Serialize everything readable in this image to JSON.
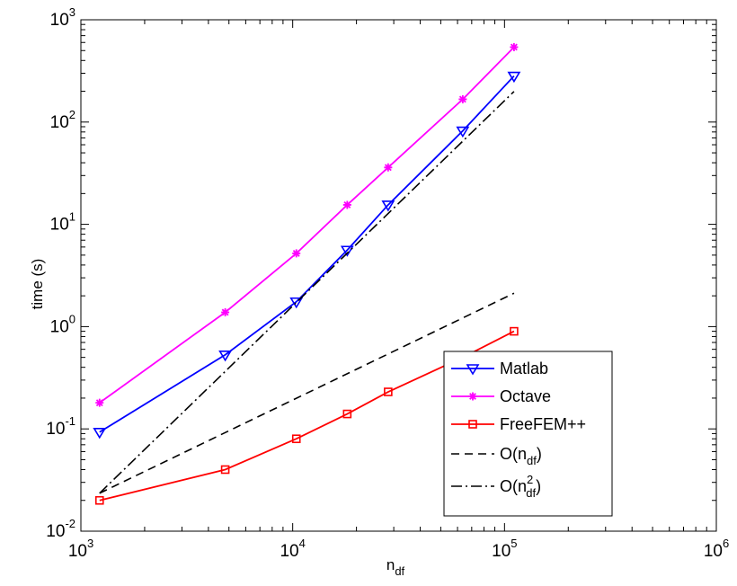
{
  "chart_data": {
    "type": "line",
    "x_scale": "log",
    "y_scale": "log",
    "xlim": [
      1000,
      1000000
    ],
    "ylim": [
      0.01,
      1000
    ],
    "grid": false,
    "legend_position": "lower-right",
    "xlabel": {
      "base": "n",
      "sub": "df"
    },
    "ylabel": "time (s)",
    "x_ticks": [
      {
        "value": 1000,
        "base": "10",
        "exp": "3"
      },
      {
        "value": 10000,
        "base": "10",
        "exp": "4"
      },
      {
        "value": 100000,
        "base": "10",
        "exp": "5"
      },
      {
        "value": 1000000,
        "base": "10",
        "exp": "6"
      }
    ],
    "y_ticks": [
      {
        "value": 0.01,
        "base": "10",
        "exp": "-2"
      },
      {
        "value": 0.1,
        "base": "10",
        "exp": "-1"
      },
      {
        "value": 1,
        "base": "10",
        "exp": "0"
      },
      {
        "value": 10,
        "base": "10",
        "exp": "1"
      },
      {
        "value": 100,
        "base": "10",
        "exp": "2"
      },
      {
        "value": 1000,
        "base": "10",
        "exp": "3"
      }
    ],
    "series": [
      {
        "name": "Matlab",
        "color": "#0000ff",
        "marker": "triangle-down",
        "dash": "",
        "x": [
          1225,
          4802,
          10404,
          18090,
          28224,
          63504,
          110889
        ],
        "y": [
          0.093,
          0.53,
          1.75,
          5.6,
          15.5,
          82,
          282
        ]
      },
      {
        "name": "Octave",
        "color": "#ff00ff",
        "marker": "star",
        "dash": "",
        "x": [
          1225,
          4802,
          10404,
          18090,
          28224,
          63504,
          110889
        ],
        "y": [
          0.18,
          1.38,
          5.2,
          15.5,
          36,
          167,
          540
        ]
      },
      {
        "name": "FreeFEM++",
        "color": "#ff0000",
        "marker": "square",
        "dash": "",
        "x": [
          1225,
          4802,
          10404,
          18090,
          28224,
          63504,
          110889
        ],
        "y": [
          0.02,
          0.04,
          0.08,
          0.14,
          0.23,
          0.5,
          0.9
        ]
      },
      {
        "name": "O(n_df)",
        "legend_parts": {
          "pre": "O(n",
          "sub": "df",
          "sup": "",
          "post": ")"
        },
        "color": "#000000",
        "marker": "none",
        "dash": "9,6",
        "x": [
          1225,
          110889
        ],
        "y": [
          0.0235,
          2.12
        ]
      },
      {
        "name": "O(n_df^2)",
        "legend_parts": {
          "pre": "O(n",
          "sub": "df",
          "sup": "2",
          "post": ")"
        },
        "color": "#000000",
        "marker": "none",
        "dash": "12,4,2,4",
        "x": [
          1225,
          110889
        ],
        "y": [
          0.0235,
          199
        ]
      }
    ]
  }
}
